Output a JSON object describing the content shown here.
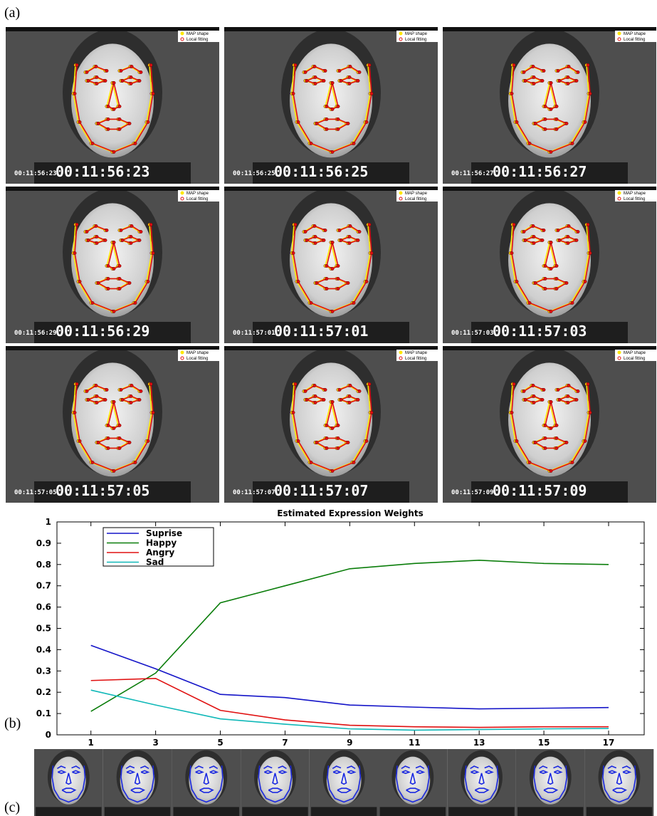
{
  "labels": {
    "a": "(a)",
    "b": "(b)",
    "c": "(c)"
  },
  "frame_legend": [
    "MAP shape",
    "Local fitting"
  ],
  "frames": [
    {
      "timecode": "00:11:56:23"
    },
    {
      "timecode": "00:11:56:25"
    },
    {
      "timecode": "00:11:56:27"
    },
    {
      "timecode": "00:11:56:29"
    },
    {
      "timecode": "00:11:57:01"
    },
    {
      "timecode": "00:11:57:03"
    },
    {
      "timecode": "00:11:57:05"
    },
    {
      "timecode": "00:11:57:07"
    },
    {
      "timecode": "00:11:57:09"
    }
  ],
  "chart_data": {
    "type": "line",
    "title": "Estimated Expression Weights",
    "x": [
      1,
      3,
      5,
      7,
      9,
      11,
      13,
      15,
      17
    ],
    "xlim": [
      -0.05,
      18.1
    ],
    "xticks": [
      1,
      3,
      5,
      7,
      9,
      11,
      13,
      15,
      17
    ],
    "ylim": [
      0,
      1
    ],
    "yticks": [
      0,
      0.1,
      0.2,
      0.3,
      0.4,
      0.5,
      0.6,
      0.7,
      0.8,
      0.9,
      1
    ],
    "legend": "upper-left",
    "series": [
      {
        "name": "Suprise",
        "color": "#1414c8",
        "values": [
          0.42,
          0.31,
          0.19,
          0.175,
          0.14,
          0.13,
          0.122,
          0.125,
          0.128
        ]
      },
      {
        "name": "Happy",
        "color": "#0a7d0a",
        "values": [
          0.11,
          0.29,
          0.62,
          0.7,
          0.78,
          0.805,
          0.82,
          0.805,
          0.8
        ]
      },
      {
        "name": "Angry",
        "color": "#e01010",
        "values": [
          0.255,
          0.265,
          0.115,
          0.07,
          0.045,
          0.038,
          0.035,
          0.038,
          0.038
        ]
      },
      {
        "name": "Sad",
        "color": "#10b8b8",
        "values": [
          0.21,
          0.14,
          0.075,
          0.05,
          0.028,
          0.022,
          0.025,
          0.028,
          0.03
        ]
      }
    ]
  }
}
